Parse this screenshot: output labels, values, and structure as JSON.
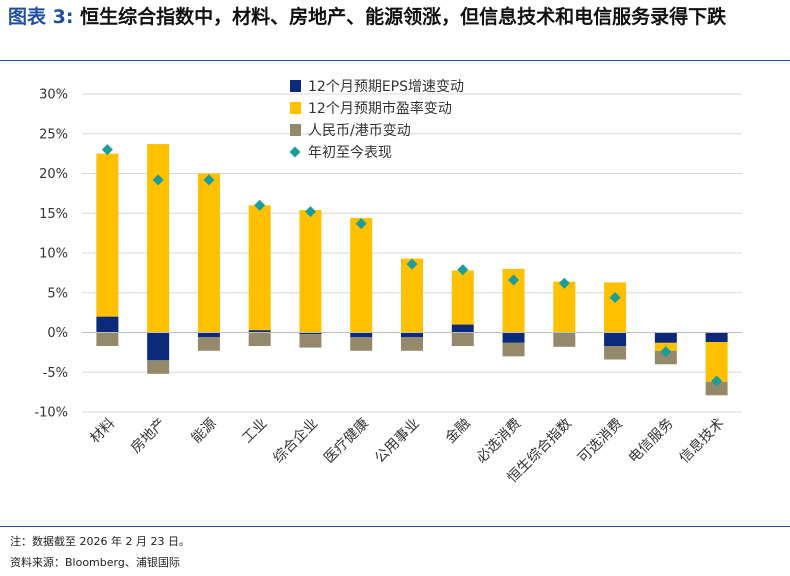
{
  "title": {
    "fig_label": "图表 3:",
    "text": "恒生综合指数中，材料、房地产、能源领涨，但信息技术和电信服务录得下跌"
  },
  "footnotes": {
    "note": "注：数据截至 2026 年 2 月 23 日。",
    "source": "资料来源：Bloomberg、浦银国际"
  },
  "chart_data": {
    "type": "bar",
    "stacked": true,
    "categories": [
      "材料",
      "房地产",
      "能源",
      "工业",
      "综合企业",
      "医疗健康",
      "公用事业",
      "金融",
      "必选消费",
      "恒生综合指数",
      "可选消费",
      "电信服务",
      "信息技术"
    ],
    "y_ticks": [
      "30%",
      "25%",
      "20%",
      "15%",
      "10%",
      "5%",
      "0%",
      "-5%",
      "-10%"
    ],
    "ylim": [
      -10,
      30
    ],
    "grid": true,
    "legend_position": "top-center",
    "series": [
      {
        "name": "12个月预期EPS增速变动",
        "kind": "bar",
        "color": "#0b2a7a",
        "values": [
          2.0,
          -3.5,
          -0.6,
          0.3,
          -0.2,
          -0.6,
          -0.6,
          1.0,
          -1.3,
          -0.1,
          -1.7,
          -1.3,
          -1.2
        ]
      },
      {
        "name": "12个月预期市盈率变动",
        "kind": "bar",
        "color": "#ffc000",
        "values": [
          20.5,
          23.7,
          20.0,
          15.7,
          15.4,
          14.4,
          9.3,
          6.8,
          8.0,
          6.4,
          6.3,
          -1.0,
          -5.0
        ]
      },
      {
        "name": "人民币/港币变动",
        "kind": "bar",
        "color": "#948a6b",
        "values": [
          -1.7,
          -1.7,
          -1.7,
          -1.7,
          -1.7,
          -1.7,
          -1.7,
          -1.7,
          -1.7,
          -1.7,
          -1.7,
          -1.7,
          -1.7
        ]
      },
      {
        "name": "年初至今表现",
        "kind": "marker",
        "color": "#1a9e9a",
        "values": [
          23.0,
          19.2,
          19.2,
          16.0,
          15.2,
          13.7,
          8.6,
          7.9,
          6.6,
          6.2,
          4.4,
          -2.4,
          -6.1
        ]
      }
    ]
  }
}
